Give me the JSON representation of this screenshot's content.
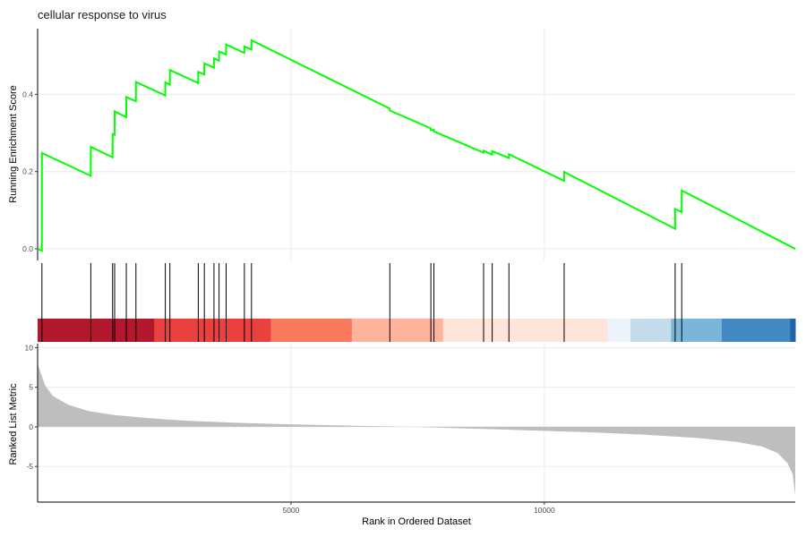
{
  "chart_data": [
    {
      "panel": "running-enrichment",
      "type": "line",
      "title": "cellular response to virus",
      "ylabel": "Running Enrichment Score",
      "xlim": [
        0,
        14950
      ],
      "ylim": [
        -0.03,
        0.57
      ],
      "y_ticks": [
        0.0,
        0.2,
        0.4
      ],
      "y_tick_labels": [
        "0.0",
        "0.2",
        "0.4"
      ],
      "color": "#00FF00",
      "hits": [
        85,
        1050,
        1480,
        1520,
        1750,
        1940,
        2520,
        2610,
        3170,
        3290,
        3480,
        3580,
        3720,
        4080,
        4220,
        6950,
        7760,
        7820,
        8800,
        8970,
        9300,
        10390,
        12580,
        12710
      ],
      "x": [
        0,
        84,
        85,
        1049,
        1050,
        1479,
        1480,
        1519,
        1520,
        1749,
        1750,
        1939,
        1940,
        2519,
        2520,
        2609,
        2610,
        3169,
        3170,
        3289,
        3290,
        3479,
        3480,
        3579,
        3580,
        3719,
        3720,
        4079,
        4080,
        4219,
        4220,
        6949,
        6950,
        7759,
        7760,
        7819,
        7820,
        8799,
        8800,
        8969,
        8970,
        9299,
        9300,
        10389,
        10390,
        12579,
        12580,
        12709,
        12710,
        14950
      ],
      "y": [
        0.0,
        -0.005,
        0.248,
        0.189,
        0.264,
        0.237,
        0.297,
        0.295,
        0.356,
        0.341,
        0.393,
        0.382,
        0.432,
        0.397,
        0.431,
        0.425,
        0.463,
        0.429,
        0.458,
        0.451,
        0.48,
        0.469,
        0.493,
        0.487,
        0.511,
        0.503,
        0.529,
        0.507,
        0.524,
        0.516,
        0.54,
        0.363,
        0.358,
        0.312,
        0.307,
        0.308,
        0.304,
        0.249,
        0.254,
        0.244,
        0.253,
        0.235,
        0.245,
        0.176,
        0.199,
        0.052,
        0.103,
        0.095,
        0.151,
        0.0
      ]
    },
    {
      "panel": "gene-hits-and-colorbar",
      "type": "heatmap",
      "segments": [
        {
          "start": 0,
          "end": 2300,
          "color": "#B2182B"
        },
        {
          "start": 2300,
          "end": 4600,
          "color": "#E8413E"
        },
        {
          "start": 4600,
          "end": 6200,
          "color": "#FB7A5E"
        },
        {
          "start": 6200,
          "end": 8000,
          "color": "#FDB39C"
        },
        {
          "start": 8000,
          "end": 11250,
          "color": "#FEE4D9"
        },
        {
          "start": 11250,
          "end": 11700,
          "color": "#EDF3FA"
        },
        {
          "start": 11700,
          "end": 12500,
          "color": "#C3DCEB"
        },
        {
          "start": 12500,
          "end": 13500,
          "color": "#7AB6D9"
        },
        {
          "start": 13500,
          "end": 14850,
          "color": "#4289C4"
        },
        {
          "start": 14850,
          "end": 14950,
          "color": "#1F63A8"
        }
      ]
    },
    {
      "panel": "ranked-list",
      "type": "area",
      "xlabel": "Rank in Ordered Dataset",
      "ylabel": "Ranked List Metric",
      "xlim": [
        0,
        14950
      ],
      "ylim": [
        -9.5,
        10.5
      ],
      "x_ticks": [
        5000,
        10000
      ],
      "x_tick_labels": [
        "5000",
        "10000"
      ],
      "y_ticks": [
        -5,
        0,
        5,
        10
      ],
      "y_tick_labels": [
        "-5",
        "0",
        "5",
        "10"
      ],
      "color": "#BEBEBE",
      "x": [
        0,
        50,
        150,
        300,
        600,
        1000,
        1500,
        2000,
        2500,
        3000,
        4000,
        5000,
        6000,
        7000,
        7400,
        8000,
        9000,
        10000,
        11000,
        12000,
        13000,
        13800,
        14300,
        14600,
        14800,
        14900,
        14950
      ],
      "y": [
        8.0,
        7.0,
        5.2,
        3.9,
        2.8,
        2.0,
        1.5,
        1.2,
        0.95,
        0.75,
        0.5,
        0.32,
        0.18,
        0.05,
        0.0,
        -0.12,
        -0.3,
        -0.5,
        -0.72,
        -1.0,
        -1.4,
        -1.9,
        -2.5,
        -3.3,
        -4.6,
        -6.0,
        -8.7
      ]
    }
  ]
}
